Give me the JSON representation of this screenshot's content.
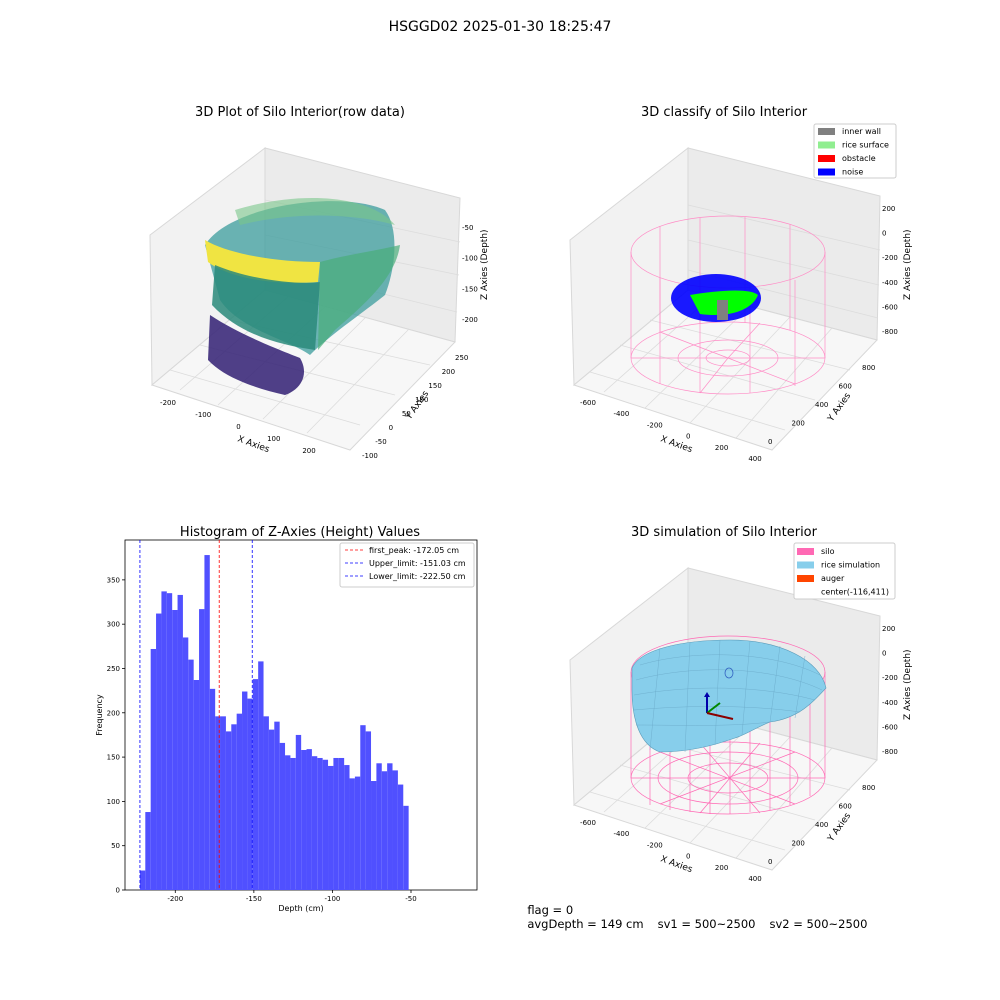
{
  "figure": {
    "suptitle": "HSGGD02 2025-01-30 18:25:47"
  },
  "panels": {
    "raw": {
      "title": "3D Plot of Silo Interior(row data)",
      "xlabel": "X Axies",
      "ylabel": "Y Axies",
      "zlabel": "Z Axies (Depth)",
      "xticks": [
        "-200",
        "-100",
        "0",
        "100",
        "200"
      ],
      "yticks": [
        "-100",
        "-50",
        "0",
        "50",
        "100",
        "150",
        "200",
        "250"
      ],
      "zticks": [
        "-50",
        "-100",
        "-150",
        "-200"
      ]
    },
    "classify": {
      "title": "3D classify of Silo Interior",
      "xlabel": "X Axies",
      "ylabel": "Y Axies",
      "zlabel": "Z Axies (Depth)",
      "xticks": [
        "-600",
        "-400",
        "-200",
        "0",
        "200",
        "400"
      ],
      "yticks": [
        "0",
        "200",
        "400",
        "600",
        "800"
      ],
      "zticks": [
        "200",
        "0",
        "-200",
        "-400",
        "-600",
        "-800"
      ],
      "legend": [
        {
          "label": "inner wall",
          "color": "#808080"
        },
        {
          "label": "rice surface",
          "color": "#90ee90"
        },
        {
          "label": "obstacle",
          "color": "#ff0000"
        },
        {
          "label": "noise",
          "color": "#0000ff"
        }
      ]
    },
    "simulation": {
      "title": "3D simulation of Silo Interior",
      "xlabel": "X Axies",
      "ylabel": "Y Axies",
      "zlabel": "Z Axies (Depth)",
      "xticks": [
        "-600",
        "-400",
        "-200",
        "0",
        "200",
        "400"
      ],
      "yticks": [
        "0",
        "200",
        "400",
        "600",
        "800"
      ],
      "zticks": [
        "200",
        "0",
        "-200",
        "-400",
        "-600",
        "-800"
      ],
      "legend": [
        {
          "label": "silo",
          "color": "#ff69b4"
        },
        {
          "label": "rice simulation",
          "color": "#87ceeb"
        },
        {
          "label": "auger",
          "color": "#ff4500"
        },
        {
          "label": "center(-116,411)",
          "color": ""
        }
      ]
    }
  },
  "footer": {
    "flag": "flag = 0",
    "avg_depth": "avgDepth = 149 cm",
    "sv1": "sv1 = 500~2500",
    "sv2": "sv2 = 500~2500"
  },
  "chart_data": {
    "type": "bar",
    "title": "Histogram of Z-Axies (Height) Values",
    "xlabel": "Depth (cm)",
    "ylabel": "Frequency",
    "xlim": [
      -232,
      -8
    ],
    "ylim": [
      0,
      395
    ],
    "xticks": [
      -200,
      -150,
      -100,
      -50
    ],
    "yticks": [
      0,
      50,
      100,
      150,
      200,
      250,
      300,
      350
    ],
    "bin_start": -222.5,
    "bin_width": 3.42,
    "values": [
      22,
      88,
      272,
      312,
      337,
      335,
      316,
      333,
      285,
      260,
      237,
      317,
      378,
      227,
      196,
      196,
      179,
      187,
      199,
      224,
      216,
      238,
      258,
      196,
      181,
      190,
      166,
      152,
      149,
      175,
      158,
      159,
      151,
      149,
      147,
      140,
      149,
      149,
      141,
      126,
      128,
      186,
      179,
      123,
      143,
      134,
      143,
      135,
      119,
      95
    ],
    "lines": [
      {
        "label": "first_peak: -172.05 cm",
        "x": -172.05,
        "color": "#ff0000"
      },
      {
        "label": "Upper_limit: -151.03 cm",
        "x": -151.03,
        "color": "#0000ff"
      },
      {
        "label": "Lower_limit: -222.50 cm",
        "x": -222.5,
        "color": "#0000ff"
      }
    ],
    "bar_color": "#5050ff"
  }
}
